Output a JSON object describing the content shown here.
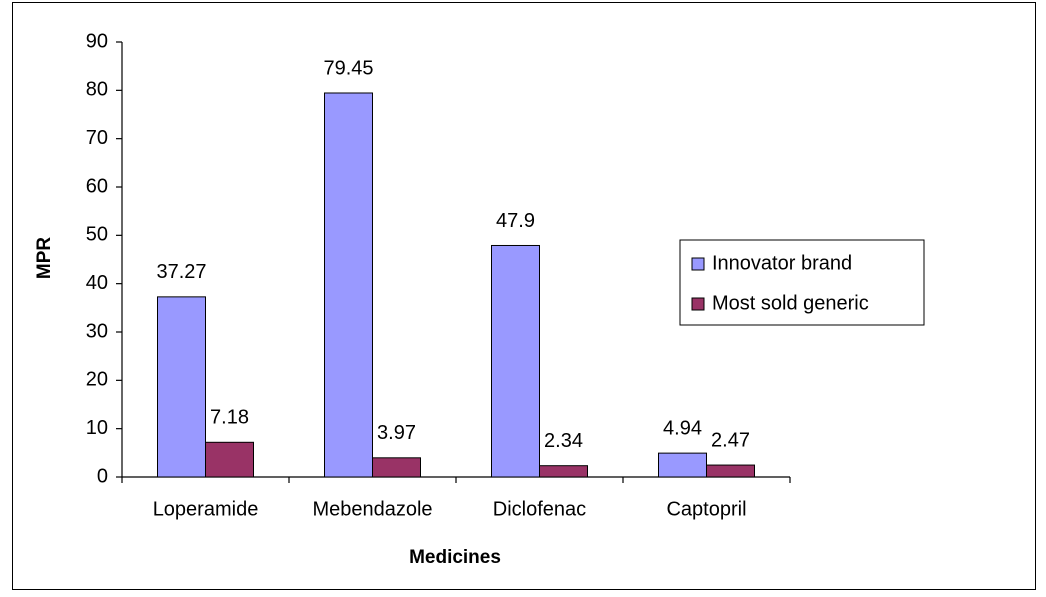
{
  "chart_data": {
    "type": "bar",
    "categories": [
      "Loperamide",
      "Mebendazole",
      "Diclofenac",
      "Captopril"
    ],
    "series": [
      {
        "name": "Innovator brand",
        "color": "#9999ff",
        "values": [
          37.27,
          79.45,
          47.9,
          4.94
        ]
      },
      {
        "name": "Most sold generic",
        "color": "#993366",
        "values": [
          7.18,
          3.97,
          2.34,
          2.47
        ]
      }
    ],
    "xlabel": "Medicines",
    "ylabel": "MPR",
    "ylim": [
      0,
      90
    ],
    "yticks": [
      0,
      10,
      20,
      30,
      40,
      50,
      60,
      70,
      80,
      90
    ],
    "legend": "right",
    "grid": false
  }
}
